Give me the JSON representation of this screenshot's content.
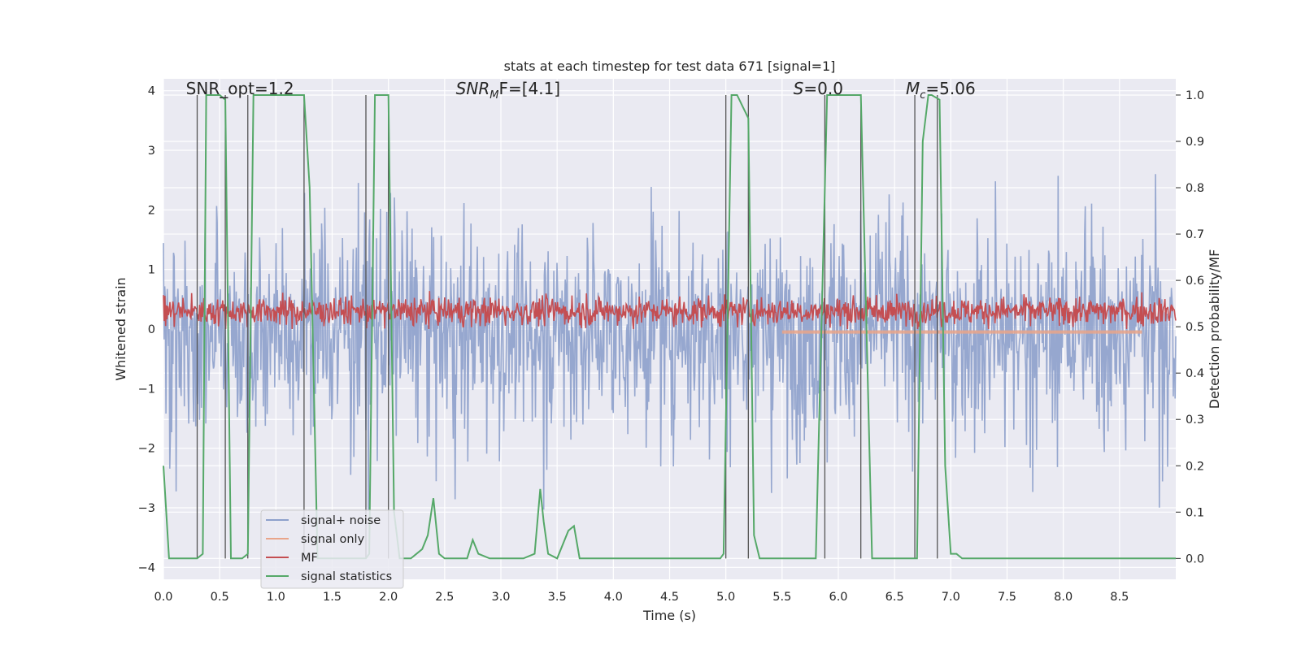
{
  "chart_data": {
    "type": "line",
    "title": "stats at each timestep for test data 671 [signal=1]",
    "xlabel": "Time (s)",
    "ylabel_left": "Whitened strain",
    "ylabel_right": "Detection probability/MF",
    "xlim": [
      0,
      9.0
    ],
    "ylim_left": [
      -4.2,
      4.2
    ],
    "ylim_right": [
      -0.045,
      1.035
    ],
    "x_ticks": [
      "0.0",
      "0.5",
      "1.0",
      "1.5",
      "2.0",
      "2.5",
      "3.0",
      "3.5",
      "4.0",
      "4.5",
      "5.0",
      "5.5",
      "6.0",
      "6.5",
      "7.0",
      "7.5",
      "8.0",
      "8.5"
    ],
    "y_ticks_left": [
      "−4",
      "−3",
      "−2",
      "−1",
      "0",
      "1",
      "2",
      "3",
      "4"
    ],
    "y_ticks_right": [
      "0.0",
      "0.1",
      "0.2",
      "0.3",
      "0.4",
      "0.5",
      "0.6",
      "0.7",
      "0.8",
      "0.9",
      "1.0"
    ],
    "grid": true,
    "legend_position": "lower-left",
    "annotations": {
      "snr_opt": {
        "label": "SNR_opt=1.2",
        "x": 0.2
      },
      "snr_mf": {
        "base": "SNR",
        "sub": "M",
        "rest": "F=[4.1]",
        "x": 2.6
      },
      "s_stat": {
        "base": "S",
        "rest": "=0.0",
        "x": 5.6
      },
      "mc": {
        "base": "M",
        "sub": "c",
        "rest": "=5.06",
        "x": 6.6
      }
    },
    "series": [
      {
        "name": "signal+ noise",
        "color": "#8da0cb",
        "axis": "left",
        "description_range": [
          -3.0,
          2.8
        ]
      },
      {
        "name": "signal only",
        "color": "#e9a58a",
        "axis": "left",
        "x_range": [
          5.5,
          8.7
        ],
        "approx_value": -0.05
      },
      {
        "name": "MF",
        "color": "#c44e52",
        "axis": "left",
        "approx_range": [
          0.0,
          0.8
        ]
      },
      {
        "name": "signal statistics",
        "color": "#55a868",
        "axis": "right",
        "x": [
          0.0,
          0.05,
          0.3,
          0.35,
          0.38,
          0.5,
          0.55,
          0.6,
          0.7,
          0.75,
          0.8,
          1.0,
          1.25,
          1.3,
          1.37,
          1.4,
          1.5,
          1.8,
          1.83,
          1.88,
          2.0,
          2.05,
          2.1,
          2.2,
          2.3,
          2.35,
          2.4,
          2.45,
          2.5,
          2.6,
          2.7,
          2.75,
          2.8,
          2.9,
          3.0,
          3.2,
          3.3,
          3.35,
          3.38,
          3.42,
          3.5,
          3.6,
          3.65,
          3.7,
          3.75,
          3.8,
          4.0,
          4.5,
          4.95,
          4.98,
          5.05,
          5.1,
          5.2,
          5.25,
          5.3,
          5.5,
          5.8,
          5.9,
          5.95,
          6.2,
          6.3,
          6.35,
          6.5,
          6.7,
          6.75,
          6.8,
          6.83,
          6.9,
          6.95,
          7.0,
          7.05,
          7.1,
          7.15,
          7.25,
          7.5,
          8.0,
          9.0
        ],
        "values": [
          0.2,
          0.0,
          0.0,
          0.01,
          1.0,
          1.0,
          0.99,
          0.0,
          0.0,
          0.01,
          1.0,
          1.0,
          1.0,
          0.8,
          0.0,
          0.0,
          0.0,
          0.0,
          0.01,
          1.0,
          1.0,
          0.1,
          0.0,
          0.0,
          0.02,
          0.05,
          0.13,
          0.01,
          0.0,
          0.0,
          0.0,
          0.04,
          0.01,
          0.0,
          0.0,
          0.0,
          0.01,
          0.15,
          0.08,
          0.01,
          0.0,
          0.06,
          0.07,
          0.0,
          0.0,
          0.0,
          0.0,
          0.0,
          0.0,
          0.01,
          1.0,
          1.0,
          0.95,
          0.05,
          0.0,
          0.0,
          0.0,
          1.0,
          1.0,
          1.0,
          0.0,
          0.0,
          0.0,
          0.0,
          0.9,
          1.0,
          1.0,
          0.99,
          0.2,
          0.01,
          0.01,
          0.0,
          0.0,
          0.0,
          0.0,
          0.0,
          0.0
        ]
      }
    ],
    "vertical_markers_s": [
      0.3,
      0.55,
      0.75,
      1.25,
      1.8,
      2.0,
      5.0,
      5.2,
      5.88,
      6.2,
      6.68,
      6.88
    ]
  }
}
